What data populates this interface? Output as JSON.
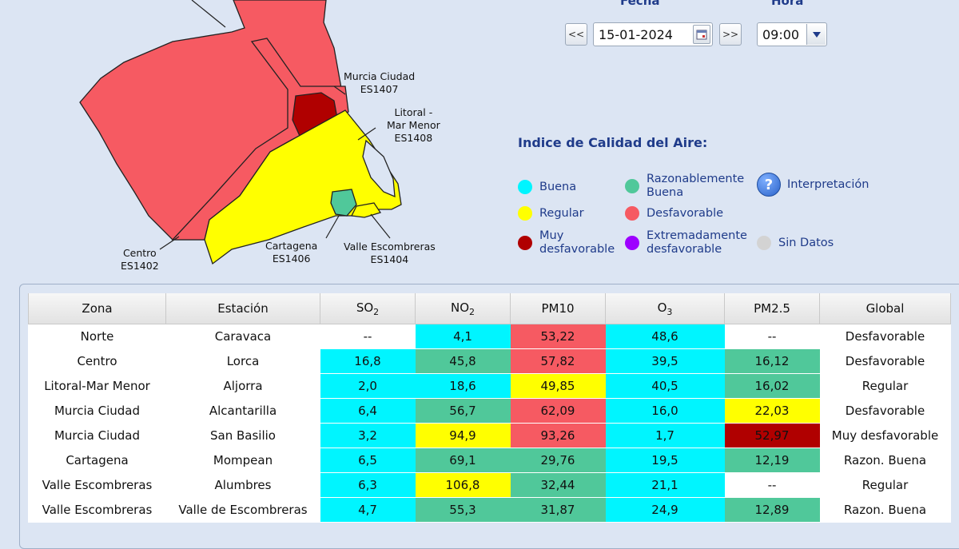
{
  "controls": {
    "fecha_label": "Fecha",
    "hora_label": "Hora",
    "prev_label": "<<",
    "next_label": ">>",
    "date_value": "15-01-2024",
    "hour_value": "09:00"
  },
  "map": {
    "labels": [
      {
        "name": "Murcia Ciudad",
        "code": "ES1407"
      },
      {
        "name": "Litoral -",
        "name2": "Mar Menor",
        "code": "ES1408"
      },
      {
        "name": "Centro",
        "code": "ES1402"
      },
      {
        "name": "Cartagena",
        "code": "ES1406"
      },
      {
        "name": "Valle Escombreras",
        "code": "ES1404"
      }
    ]
  },
  "legend": {
    "title": "Indice de Calidad del Aire:",
    "items": [
      {
        "label": "Buena",
        "color": "#00f5ff"
      },
      {
        "label": "Razonablemente",
        "label2": "Buena",
        "color": "#50c89a"
      },
      {
        "label": "Regular",
        "color": "#ffff00"
      },
      {
        "label": "Desfavorable",
        "color": "#f65a62"
      },
      {
        "label": "Muy",
        "label2": "desfavorable",
        "color": "#b00000"
      },
      {
        "label": "Extremadamente",
        "label2": "desfavorable",
        "color": "#9d00ff"
      },
      {
        "label": "Sin Datos",
        "color": "#d3d3d3"
      }
    ],
    "help_label": "Interpretación",
    "help_glyph": "?"
  },
  "table": {
    "headers": [
      "Zona",
      "Estación",
      "SO",
      "NO",
      "PM10",
      "O",
      "PM2.5",
      "Global"
    ],
    "subscripts": {
      "so2": "2",
      "no2": "2",
      "o3": "3"
    },
    "rows": [
      {
        "zona": "Norte",
        "estacion": "Caravaca",
        "so2": "--",
        "no2": "4,1",
        "pm10": "53,22",
        "o3": "48,6",
        "pm25": "--",
        "global": "Desfavorable"
      },
      {
        "zona": "Centro",
        "estacion": "Lorca",
        "so2": "16,8",
        "no2": "45,8",
        "pm10": "57,82",
        "o3": "39,5",
        "pm25": "16,12",
        "global": "Desfavorable"
      },
      {
        "zona": "Litoral-Mar Menor",
        "estacion": "Aljorra",
        "so2": "2,0",
        "no2": "18,6",
        "pm10": "49,85",
        "o3": "40,5",
        "pm25": "16,02",
        "global": "Regular"
      },
      {
        "zona": "Murcia Ciudad",
        "estacion": "Alcantarilla",
        "so2": "6,4",
        "no2": "56,7",
        "pm10": "62,09",
        "o3": "16,0",
        "pm25": "22,03",
        "global": "Desfavorable"
      },
      {
        "zona": "Murcia Ciudad",
        "estacion": "San Basilio",
        "so2": "3,2",
        "no2": "94,9",
        "pm10": "93,26",
        "o3": "1,7",
        "pm25": "52,97",
        "global": "Muy desfavorable"
      },
      {
        "zona": "Cartagena",
        "estacion": "Mompean",
        "so2": "6,5",
        "no2": "69,1",
        "pm10": "29,76",
        "o3": "19,5",
        "pm25": "12,19",
        "global": "Razon. Buena"
      },
      {
        "zona": "Valle Escombreras",
        "estacion": "Alumbres",
        "so2": "6,3",
        "no2": "106,8",
        "pm10": "32,44",
        "o3": "21,1",
        "pm25": "--",
        "global": "Regular"
      },
      {
        "zona": "Valle Escombreras",
        "estacion": "Valle de Escombreras",
        "so2": "4,7",
        "no2": "55,3",
        "pm10": "31,87",
        "o3": "24,9",
        "pm25": "12,89",
        "global": "Razon. Buena"
      }
    ]
  }
}
